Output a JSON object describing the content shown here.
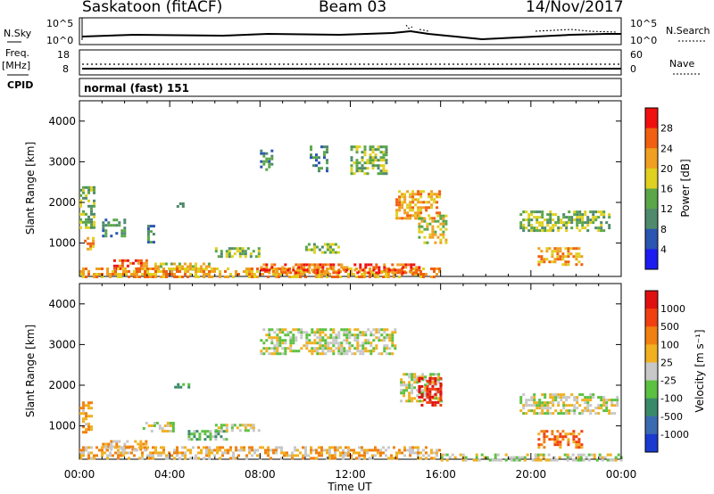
{
  "header": {
    "station": "Saskatoon (fitACF)",
    "beam": "Beam 03",
    "date": "14/Nov/2017"
  },
  "top_panels": {
    "nsky_label": "N.Sky",
    "nsky_ticks": [
      "10^5",
      "10^0"
    ],
    "nsearch_label": "N.Search",
    "freq_label": "Freq.",
    "freq_unit": "[MHz]",
    "freq_ticks": [
      "18",
      "8"
    ],
    "nave_label": "Nave",
    "nave_ticks": [
      "60",
      "0"
    ],
    "cpid_label": "CPID",
    "cpid_text": "normal (fast) 151"
  },
  "chart_data": [
    {
      "type": "heatmap",
      "name": "power",
      "ylabel": "Slant Range [km]",
      "xlabel": "Time UT",
      "ylim": [
        180,
        4500
      ],
      "xlim": [
        0,
        24
      ],
      "x_ticks": [
        "00:00",
        "04:00",
        "08:00",
        "12:00",
        "16:00",
        "20:00",
        "00:00"
      ],
      "y_ticks": [
        "1000",
        "2000",
        "3000",
        "4000"
      ],
      "colorbar": {
        "label": "Power [dB]",
        "ticks": [
          "4",
          "8",
          "12",
          "16",
          "20",
          "24",
          "28"
        ],
        "colors": [
          "#1c1cf0",
          "#2a55b0",
          "#4f8a6c",
          "#5aa648",
          "#e0d020",
          "#f0a020",
          "#f06010",
          "#f01010"
        ]
      },
      "echo_regions": [
        {
          "t0": 0.0,
          "t1": 0.6,
          "r0": 1400,
          "r1": 2400,
          "level": 3
        },
        {
          "t0": 0.2,
          "t1": 0.6,
          "r0": 850,
          "r1": 1150,
          "level": 5
        },
        {
          "t0": 1.0,
          "t1": 2.0,
          "r0": 1200,
          "r1": 1600,
          "level": 2
        },
        {
          "t0": 1.5,
          "t1": 3.0,
          "r0": 350,
          "r1": 600,
          "level": 6
        },
        {
          "t0": 3.0,
          "t1": 3.3,
          "r0": 1050,
          "r1": 1450,
          "level": 2
        },
        {
          "t0": 3.2,
          "t1": 5.8,
          "r0": 350,
          "r1": 520,
          "level": 4
        },
        {
          "t0": 4.3,
          "t1": 4.8,
          "r0": 1900,
          "r1": 2000,
          "level": 2
        },
        {
          "t0": 6.0,
          "t1": 8.0,
          "r0": 650,
          "r1": 900,
          "level": 3
        },
        {
          "t0": 8.0,
          "t1": 8.5,
          "r0": 2800,
          "r1": 3300,
          "level": 2
        },
        {
          "t0": 10.0,
          "t1": 11.5,
          "r0": 800,
          "r1": 1000,
          "level": 3
        },
        {
          "t0": 10.2,
          "t1": 11.0,
          "r0": 2800,
          "r1": 3400,
          "level": 2
        },
        {
          "t0": 12.0,
          "t1": 13.6,
          "r0": 2700,
          "r1": 3400,
          "level": 3
        },
        {
          "t0": 14.0,
          "t1": 16.0,
          "r0": 1600,
          "r1": 2300,
          "level": 5
        },
        {
          "t0": 15.0,
          "t1": 16.2,
          "r0": 1000,
          "r1": 1700,
          "level": 4
        },
        {
          "t0": 19.5,
          "t1": 23.5,
          "r0": 1300,
          "r1": 1800,
          "level": 3
        },
        {
          "t0": 20.3,
          "t1": 22.3,
          "r0": 500,
          "r1": 900,
          "level": 5
        },
        {
          "t0": 0.0,
          "t1": 16.0,
          "r0": 180,
          "r1": 400,
          "level": 5
        },
        {
          "t0": 8.0,
          "t1": 15.0,
          "r0": 300,
          "r1": 500,
          "level": 6
        }
      ]
    },
    {
      "type": "heatmap",
      "name": "velocity",
      "ylabel": "Slant Range [km]",
      "xlabel": "Time UT",
      "ylim": [
        180,
        4500
      ],
      "xlim": [
        0,
        24
      ],
      "x_ticks": [
        "00:00",
        "04:00",
        "08:00",
        "12:00",
        "16:00",
        "20:00",
        "00:00"
      ],
      "y_ticks": [
        "1000",
        "2000",
        "3000",
        "4000"
      ],
      "colorbar": {
        "label": "Velocity [m s⁻¹]",
        "ticks": [
          "1000",
          "500",
          "100",
          "25",
          "-25",
          "-100",
          "-500",
          "-1000"
        ],
        "colors": [
          "#1a3ad0",
          "#3a6ab0",
          "#3a8a6a",
          "#5cc040",
          "#c8c8c8",
          "#f0b020",
          "#f08010",
          "#f04010",
          "#e01010"
        ]
      },
      "echo_regions": [
        {
          "t0": 0.0,
          "t1": 0.5,
          "r0": 850,
          "r1": 1600,
          "level": 5
        },
        {
          "t0": 1.0,
          "t1": 3.0,
          "r0": 400,
          "r1": 650,
          "level": 5
        },
        {
          "t0": 2.8,
          "t1": 4.2,
          "r0": 900,
          "r1": 1100,
          "level": 4
        },
        {
          "t0": 4.2,
          "t1": 4.8,
          "r0": 1950,
          "r1": 2050,
          "level": 3
        },
        {
          "t0": 4.8,
          "t1": 6.5,
          "r0": 700,
          "r1": 900,
          "level": 3
        },
        {
          "t0": 6.0,
          "t1": 8.0,
          "r0": 900,
          "r1": 1050,
          "level": 4
        },
        {
          "t0": 8.0,
          "t1": 14.0,
          "r0": 2800,
          "r1": 3400,
          "level": 4
        },
        {
          "t0": 14.2,
          "t1": 16.0,
          "r0": 1600,
          "r1": 2300,
          "level": 4
        },
        {
          "t0": 15.0,
          "t1": 16.0,
          "r0": 1500,
          "r1": 2200,
          "level": 8
        },
        {
          "t0": 19.5,
          "t1": 23.8,
          "r0": 1300,
          "r1": 1800,
          "level": 4
        },
        {
          "t0": 20.3,
          "t1": 22.3,
          "r0": 500,
          "r1": 900,
          "level": 6
        },
        {
          "t0": 0.0,
          "t1": 16.0,
          "r0": 180,
          "r1": 500,
          "level": 5
        },
        {
          "t0": 16.0,
          "t1": 24.0,
          "r0": 180,
          "r1": 320,
          "level": 4
        }
      ]
    }
  ]
}
